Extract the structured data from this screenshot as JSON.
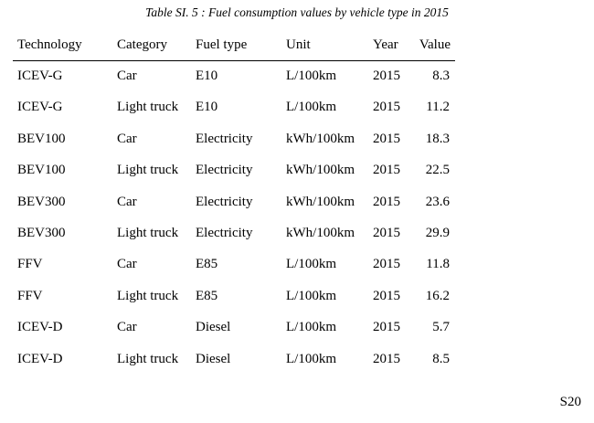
{
  "caption": "Table SI. 5 : Fuel consumption values by vehicle type in 2015",
  "headers": {
    "technology": "Technology",
    "category": "Category",
    "fuel_type": "Fuel type",
    "unit": "Unit",
    "year": "Year",
    "value": "Value"
  },
  "rows": [
    {
      "technology": "ICEV-G",
      "category": "Car",
      "fuel_type": "E10",
      "unit": "L/100km",
      "year": "2015",
      "value": "8.3"
    },
    {
      "technology": "ICEV-G",
      "category": "Light truck",
      "fuel_type": "E10",
      "unit": "L/100km",
      "year": "2015",
      "value": "11.2"
    },
    {
      "technology": "BEV100",
      "category": "Car",
      "fuel_type": "Electricity",
      "unit": "kWh/100km",
      "year": "2015",
      "value": "18.3"
    },
    {
      "technology": "BEV100",
      "category": "Light truck",
      "fuel_type": "Electricity",
      "unit": "kWh/100km",
      "year": "2015",
      "value": "22.5"
    },
    {
      "technology": "BEV300",
      "category": "Car",
      "fuel_type": "Electricity",
      "unit": "kWh/100km",
      "year": "2015",
      "value": "23.6"
    },
    {
      "technology": "BEV300",
      "category": "Light truck",
      "fuel_type": "Electricity",
      "unit": "kWh/100km",
      "year": "2015",
      "value": "29.9"
    },
    {
      "technology": "FFV",
      "category": "Car",
      "fuel_type": "E85",
      "unit": "L/100km",
      "year": "2015",
      "value": "11.8"
    },
    {
      "technology": "FFV",
      "category": "Light truck",
      "fuel_type": "E85",
      "unit": "L/100km",
      "year": "2015",
      "value": "16.2"
    },
    {
      "technology": "ICEV-D",
      "category": "Car",
      "fuel_type": "Diesel",
      "unit": "L/100km",
      "year": "2015",
      "value": "5.7"
    },
    {
      "technology": "ICEV-D",
      "category": "Light truck",
      "fuel_type": "Diesel",
      "unit": "L/100km",
      "year": "2015",
      "value": "8.5"
    }
  ],
  "page_number": "S20"
}
